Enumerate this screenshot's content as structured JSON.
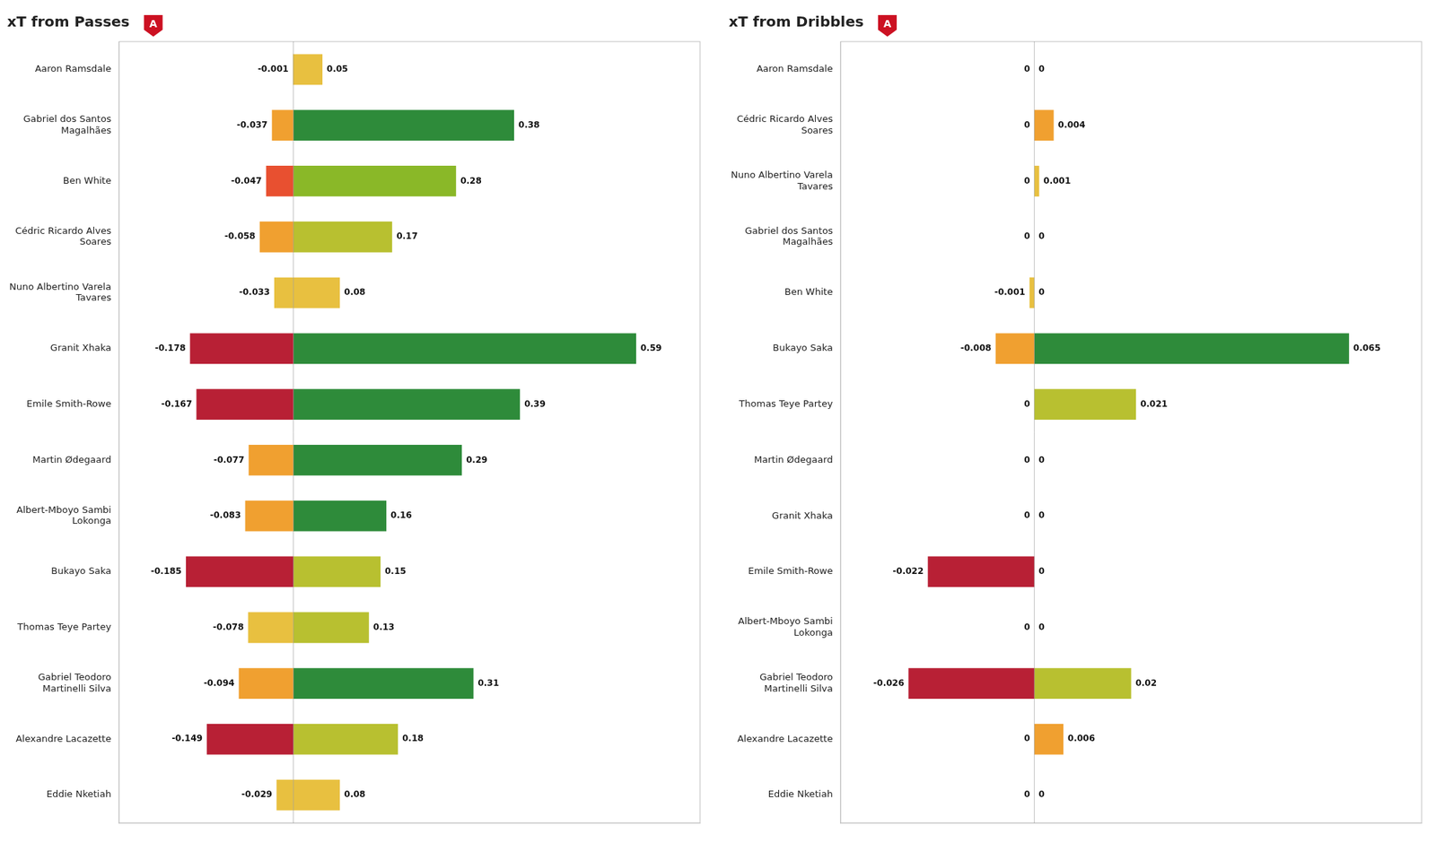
{
  "chart_data": [
    {
      "type": "bar",
      "orientation": "horizontal",
      "stacked": true,
      "title": "xT from Passes",
      "annotations": [
        "A"
      ],
      "categories": [
        "Aaron Ramsdale",
        "Gabriel dos Santos\nMagalhães",
        "Ben White",
        "Cédric Ricardo Alves\nSoares",
        "Nuno Albertino Varela\nTavares",
        "Granit Xhaka",
        "Emile Smith-Rowe",
        "Martin Ødegaard",
        "Albert-Mboyo Sambi\nLokonga",
        "Bukayo Saka",
        "Thomas Teye Partey",
        "Gabriel Teodoro\nMartinelli Silva",
        "Alexandre Lacazette",
        "Eddie Nketiah"
      ],
      "series": [
        {
          "values": [
            -0.001,
            -0.037,
            -0.047,
            -0.058,
            -0.033,
            -0.178,
            -0.167,
            -0.077,
            -0.083,
            -0.185,
            -0.078,
            -0.094,
            -0.149,
            -0.029
          ],
          "colors": [
            "#e8c040",
            "#f0a030",
            "#e85030",
            "#f0a030",
            "#e8c040",
            "#b82035",
            "#b82035",
            "#f0a030",
            "#f0a030",
            "#b82035",
            "#e8c040",
            "#f0a030",
            "#b82035",
            "#e8c040"
          ]
        },
        {
          "values": [
            0.05,
            0.38,
            0.28,
            0.17,
            0.08,
            0.59,
            0.39,
            0.29,
            0.16,
            0.15,
            0.13,
            0.31,
            0.18,
            0.08
          ],
          "colors": [
            "#e8c040",
            "#2e8b3a",
            "#8ab828",
            "#b8c030",
            "#e8c040",
            "#2e8b3a",
            "#2e8b3a",
            "#2e8b3a",
            "#2e8b3a",
            "#b8c030",
            "#b8c030",
            "#2e8b3a",
            "#b8c030",
            "#e8c040"
          ]
        }
      ],
      "xlim": [
        -0.3,
        0.7
      ],
      "grid": false,
      "data_labels": true,
      "tick_labels": "y"
    },
    {
      "type": "bar",
      "orientation": "horizontal",
      "stacked": true,
      "title": "xT from Dribbles",
      "annotations": [
        "A"
      ],
      "categories": [
        "Aaron Ramsdale",
        "Cédric Ricardo Alves\nSoares",
        "Nuno Albertino Varela\nTavares",
        "Gabriel dos Santos\nMagalhães",
        "Ben White",
        "Bukayo Saka",
        "Thomas Teye Partey",
        "Martin Ødegaard",
        "Granit Xhaka",
        "Emile Smith-Rowe",
        "Albert-Mboyo Sambi\nLokonga",
        "Gabriel Teodoro\nMartinelli Silva",
        "Alexandre Lacazette",
        "Eddie Nketiah"
      ],
      "series": [
        {
          "values": [
            0.0,
            0.0,
            0.0,
            0.0,
            -0.001,
            -0.008,
            0.0,
            0.0,
            0.0,
            -0.022,
            0.0,
            -0.026,
            0.0,
            0.0
          ],
          "colors": [
            "#aaaaaa",
            "#aaaaaa",
            "#aaaaaa",
            "#aaaaaa",
            "#e8c040",
            "#f0a030",
            "#aaaaaa",
            "#aaaaaa",
            "#aaaaaa",
            "#b82035",
            "#aaaaaa",
            "#b82035",
            "#aaaaaa",
            "#aaaaaa"
          ]
        },
        {
          "values": [
            0.0,
            0.004,
            0.001,
            0.0,
            0.0,
            0.065,
            0.021,
            0.0,
            0.0,
            0.0,
            0.0,
            0.02,
            0.006,
            0.0
          ],
          "colors": [
            "#aaaaaa",
            "#f0a030",
            "#e8c040",
            "#aaaaaa",
            "#aaaaaa",
            "#2e8b3a",
            "#b8c030",
            "#aaaaaa",
            "#aaaaaa",
            "#aaaaaa",
            "#aaaaaa",
            "#b8c030",
            "#f0a030",
            "#aaaaaa"
          ]
        }
      ],
      "xlim": [
        -0.04,
        0.08
      ],
      "grid": false,
      "data_labels": true,
      "tick_labels": "y"
    }
  ]
}
